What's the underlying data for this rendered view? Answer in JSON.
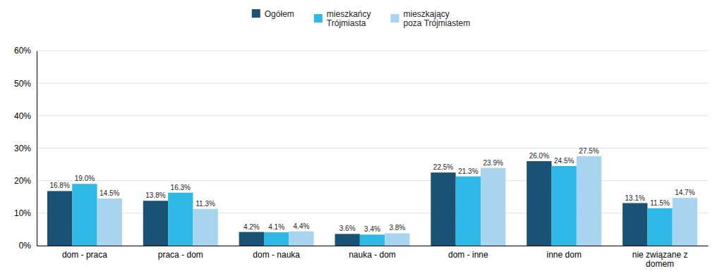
{
  "chart_data": {
    "type": "bar",
    "categories": [
      "dom - praca",
      "praca - dom",
      "dom - nauka",
      "nauka - dom",
      "dom - inne",
      "inne dom",
      "nie związane z\ndomem"
    ],
    "series": [
      {
        "name": "Ogółem",
        "color": "#1a5276",
        "values": [
          16.8,
          13.8,
          4.2,
          3.6,
          22.5,
          26.0,
          13.1
        ],
        "value_labels": [
          "16.8%",
          "13.8%",
          "4.2%",
          "3.6%",
          "22.5%",
          "26.0%",
          "13.1%"
        ]
      },
      {
        "name": "mieszkańcy\nTrójmiasta",
        "color": "#2eb8e6",
        "values": [
          19.0,
          16.3,
          4.1,
          3.4,
          21.3,
          24.5,
          11.5
        ],
        "value_labels": [
          "19.0%",
          "16.3%",
          "4.1%",
          "3.4%",
          "21.3%",
          "24.5%",
          "11.5%"
        ]
      },
      {
        "name": "mieszkający\npoza Trójmiastem",
        "color": "#a8d4f0",
        "values": [
          14.5,
          11.3,
          4.4,
          3.8,
          23.9,
          27.5,
          14.7
        ],
        "value_labels": [
          "14.5%",
          "11.3%",
          "4.4%",
          "3.8%",
          "23.9%",
          "27.5%",
          "14.7%"
        ]
      }
    ],
    "ylim": [
      0,
      60
    ],
    "yticks": [
      {
        "value": 0,
        "label": "0%"
      },
      {
        "value": 10,
        "label": "10%"
      },
      {
        "value": 20,
        "label": "20%"
      },
      {
        "value": 30,
        "label": "30%"
      },
      {
        "value": 40,
        "label": "40%"
      },
      {
        "value": 50,
        "label": "50%"
      },
      {
        "value": 60,
        "label": "60%"
      }
    ],
    "grid": true,
    "legend": "top",
    "data_labels": true
  }
}
